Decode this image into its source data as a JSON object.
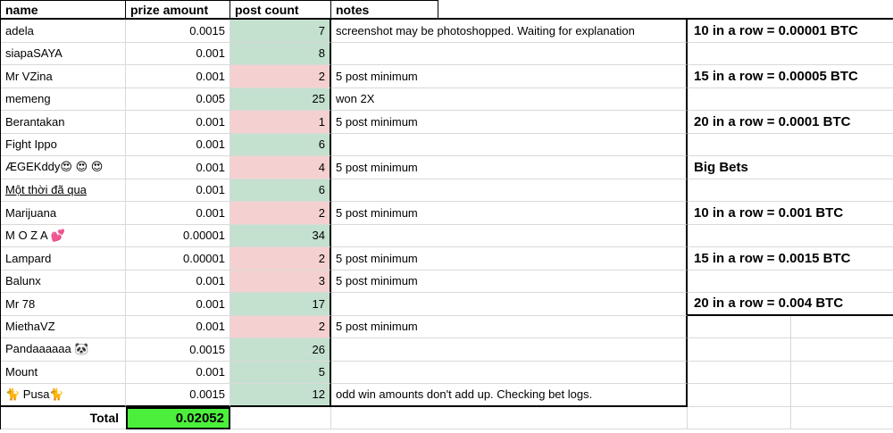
{
  "colors": {
    "post_ok": "#c4e0ce",
    "post_low": "#f4d1d0",
    "total": "#4cef3c"
  },
  "sheet": {
    "headers": {
      "name": "name",
      "prize": "prize amount",
      "post": "post count",
      "notes": "notes"
    },
    "rows": [
      {
        "name": "adela",
        "prize": "0.0015",
        "post": "7",
        "post_class": "ok",
        "note": "screenshot may be photoshopped. Waiting for explanation",
        "right": "10 in a row = 0.00001 BTC"
      },
      {
        "name": "siapaSAYA",
        "prize": "0.001",
        "post": "8",
        "post_class": "ok",
        "note": "",
        "right": ""
      },
      {
        "name": "Mr VZina",
        "prize": "0.001",
        "post": "2",
        "post_class": "low",
        "note": "5 post minimum",
        "right": "15 in a row = 0.00005 BTC"
      },
      {
        "name": "memeng",
        "prize": "0.005",
        "post": "25",
        "post_class": "ok",
        "note": "won 2X",
        "right": ""
      },
      {
        "name": "Berantakan",
        "prize": "0.001",
        "post": "1",
        "post_class": "low",
        "note": "5 post minimum",
        "right": "20 in a row = 0.0001 BTC"
      },
      {
        "name": "Fight Ippo",
        "prize": "0.001",
        "post": "6",
        "post_class": "ok",
        "note": "",
        "right": ""
      },
      {
        "name": "ÆGEKddy😍 😍 😍",
        "prize": "0.001",
        "post": "4",
        "post_class": "low",
        "note": "5 post minimum",
        "right": "Big Bets"
      },
      {
        "name": "Một thời đã qua",
        "name_class": "link",
        "prize": "0.001",
        "post": "6",
        "post_class": "ok",
        "note": "",
        "right": ""
      },
      {
        "name": "Marijuana",
        "prize": "0.001",
        "post": "2",
        "post_class": "low",
        "note": "5 post minimum",
        "right": "10 in a row = 0.001 BTC"
      },
      {
        "name": "M O Z A 💕",
        "prize": "0.00001",
        "post": "34",
        "post_class": "ok",
        "note": "",
        "right": ""
      },
      {
        "name": "Lampard",
        "prize": "0.00001",
        "post": "2",
        "post_class": "low",
        "note": "5 post minimum",
        "right": "15 in a row = 0.0015 BTC"
      },
      {
        "name": "Balunx",
        "prize": "0.001",
        "post": "3",
        "post_class": "low",
        "note": "5 post minimum",
        "right": ""
      },
      {
        "name": "Mr 78",
        "prize": "0.001",
        "post": "17",
        "post_class": "ok",
        "note": "",
        "right": "20 in a row = 0.004 BTC"
      },
      {
        "name": "MiethaVZ",
        "prize": "0.001",
        "post": "2",
        "post_class": "low",
        "note": "5 post minimum"
      },
      {
        "name": "Pandaaaaaa 🐼",
        "prize": "0.0015",
        "post": "26",
        "post_class": "ok",
        "note": ""
      },
      {
        "name": "Mount",
        "prize": "0.001",
        "post": "5",
        "post_class": "ok",
        "note": ""
      },
      {
        "name": "🐈 Pusa🐈",
        "prize": "0.0015",
        "post": "12",
        "post_class": "ok",
        "note": "odd win amounts don't add up. Checking bet logs."
      }
    ],
    "total": {
      "label": "Total",
      "value": "0.02052"
    }
  }
}
